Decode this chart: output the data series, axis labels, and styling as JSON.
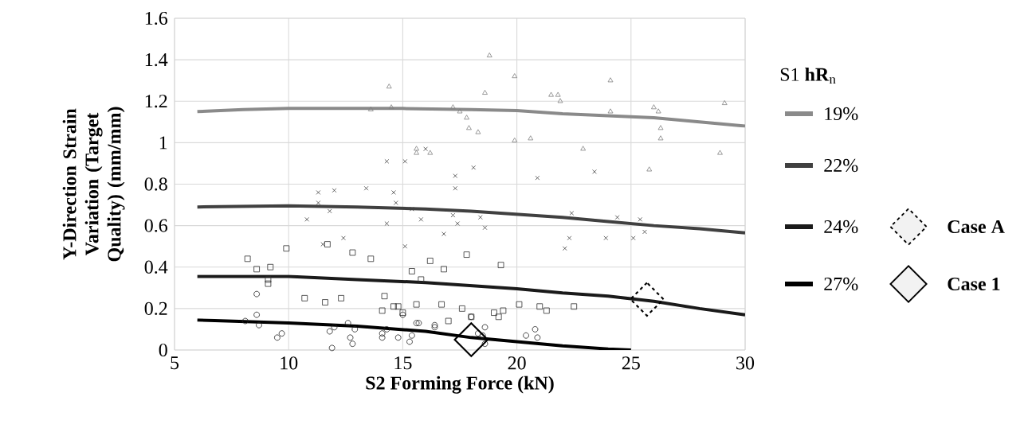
{
  "chart_data": {
    "type": "scatter",
    "xlabel": "S2 Forming Force (kN)",
    "ylabel": "Y-Direction Strain Variation (Target Quality) (mm/mm)",
    "legend_title": "S1 **hR**$_{n}$",
    "xlim": [
      5,
      30
    ],
    "ylim": [
      0,
      1.6
    ],
    "xticks": [
      5,
      10,
      15,
      20,
      25,
      30
    ],
    "yticks": [
      0,
      0.2,
      0.4,
      0.6,
      0.8,
      1,
      1.2,
      1.4,
      1.6
    ],
    "grid": true,
    "legend": "right",
    "series": [
      {
        "color": "#808080",
        "marker": "triangle",
        "x": [
          13.6,
          14.4,
          14.5,
          15.6,
          15.6,
          16.2,
          17.2,
          17.5,
          17.8,
          17.9,
          18.3,
          18.6,
          18.8,
          19.9,
          19.9,
          20.6,
          21.5,
          21.8,
          21.9,
          22.9,
          24.1,
          24.1,
          25.8,
          26.0,
          26.2,
          26.3,
          26.3,
          28.9,
          29.1
        ],
        "values": [
          1.16,
          1.27,
          1.17,
          0.97,
          0.95,
          0.95,
          1.17,
          1.15,
          1.12,
          1.07,
          1.05,
          1.24,
          1.42,
          1.01,
          1.32,
          1.02,
          1.23,
          1.23,
          1.2,
          0.97,
          1.3,
          1.15,
          0.87,
          1.17,
          1.15,
          1.07,
          1.02,
          0.95,
          1.19
        ]
      },
      {
        "color": "#404040",
        "marker": "cross",
        "x": [
          10.8,
          11.3,
          11.3,
          11.5,
          11.8,
          12.0,
          12.4,
          13.4,
          14.3,
          14.3,
          14.6,
          14.7,
          15.1,
          15.1,
          15.4,
          15.8,
          16.0,
          16.8,
          17.2,
          17.3,
          17.3,
          17.4,
          18.1,
          18.4,
          18.6,
          20.9,
          22.1,
          22.3,
          22.4,
          23.4,
          23.9,
          24.4,
          25.1,
          25.4,
          25.6
        ],
        "values": [
          0.63,
          0.71,
          0.76,
          0.51,
          0.67,
          0.77,
          0.54,
          0.78,
          0.91,
          0.61,
          0.76,
          0.71,
          0.91,
          0.5,
          0.68,
          0.63,
          0.97,
          0.56,
          0.65,
          0.78,
          0.84,
          0.61,
          0.88,
          0.64,
          0.59,
          0.83,
          0.49,
          0.54,
          0.66,
          0.86,
          0.54,
          0.64,
          0.54,
          0.63,
          0.57
        ]
      },
      {
        "color": "#303030",
        "marker": "square",
        "x": [
          8.2,
          8.6,
          9.2,
          9.1,
          9.1,
          9.9,
          10.7,
          11.7,
          11.6,
          12.3,
          12.8,
          13.6,
          14.2,
          14.1,
          14.6,
          14.8,
          15.0,
          15.4,
          15.6,
          15.8,
          16.2,
          16.8,
          16.7,
          17.0,
          17.8,
          17.6,
          18.0,
          19.0,
          19.2,
          19.3,
          19.4,
          20.1,
          21.0,
          21.3,
          22.5
        ],
        "values": [
          0.44,
          0.39,
          0.4,
          0.34,
          0.32,
          0.49,
          0.25,
          0.51,
          0.23,
          0.25,
          0.47,
          0.44,
          0.26,
          0.19,
          0.21,
          0.21,
          0.18,
          0.38,
          0.22,
          0.34,
          0.43,
          0.39,
          0.22,
          0.14,
          0.46,
          0.2,
          0.16,
          0.18,
          0.16,
          0.41,
          0.19,
          0.22,
          0.21,
          0.19,
          0.21
        ]
      },
      {
        "color": "#202020",
        "marker": "circle",
        "x": [
          8.1,
          8.6,
          8.6,
          8.7,
          9.5,
          9.7,
          11.9,
          11.8,
          12.0,
          12.6,
          12.7,
          12.8,
          12.9,
          14.1,
          14.1,
          14.3,
          14.8,
          15.0,
          15.3,
          15.4,
          15.6,
          15.7,
          16.4,
          16.4,
          18.0,
          18.3,
          18.5,
          18.6,
          18.6,
          20.4,
          20.8,
          20.9
        ],
        "values": [
          0.14,
          0.27,
          0.17,
          0.12,
          0.06,
          0.08,
          0.01,
          0.09,
          0.11,
          0.13,
          0.06,
          0.03,
          0.1,
          0.08,
          0.06,
          0.1,
          0.06,
          0.17,
          0.04,
          0.07,
          0.13,
          0.13,
          0.12,
          0.11,
          0.16,
          0.08,
          0.07,
          0.03,
          0.11,
          0.07,
          0.1,
          0.06
        ]
      },
      {
        "type": "line",
        "name": "19%",
        "color": "#8a8a8a",
        "line_style": "solid",
        "x": [
          6,
          8,
          10,
          15,
          18,
          20,
          22,
          24,
          26,
          28,
          30
        ],
        "values": [
          1.15,
          1.16,
          1.165,
          1.165,
          1.16,
          1.155,
          1.14,
          1.13,
          1.12,
          1.1,
          1.08
        ]
      },
      {
        "type": "line",
        "name": "22%",
        "color": "#404040",
        "line_style": "solid",
        "x": [
          6,
          10,
          13,
          16,
          18,
          20,
          22,
          24,
          26,
          28,
          30
        ],
        "values": [
          0.69,
          0.695,
          0.69,
          0.68,
          0.67,
          0.655,
          0.64,
          0.62,
          0.6,
          0.585,
          0.565
        ]
      },
      {
        "type": "line",
        "name": "24%",
        "color": "#1a1a1a",
        "line_style": "solid",
        "x": [
          6,
          10,
          13,
          16,
          18,
          20,
          22,
          24,
          26,
          28,
          30
        ],
        "values": [
          0.355,
          0.355,
          0.34,
          0.325,
          0.31,
          0.295,
          0.275,
          0.26,
          0.235,
          0.2,
          0.17
        ]
      },
      {
        "type": "line",
        "name": "27%",
        "color": "#000000",
        "line_style": "solid",
        "x": [
          6,
          10,
          13,
          16,
          18,
          20,
          22,
          24,
          25
        ],
        "values": [
          0.145,
          0.13,
          0.115,
          0.09,
          0.06,
          0.04,
          0.02,
          0.005,
          0
        ]
      },
      {
        "name": "Case A",
        "color": "#000000",
        "marker": "diamond",
        "line_style": "dashed",
        "x": [
          25.7
        ],
        "values": [
          0.245
        ]
      },
      {
        "name": "Case 1",
        "color": "#000000",
        "marker": "diamond",
        "line_style": "solid",
        "x": [
          18.0
        ],
        "values": [
          0.05
        ]
      }
    ]
  }
}
